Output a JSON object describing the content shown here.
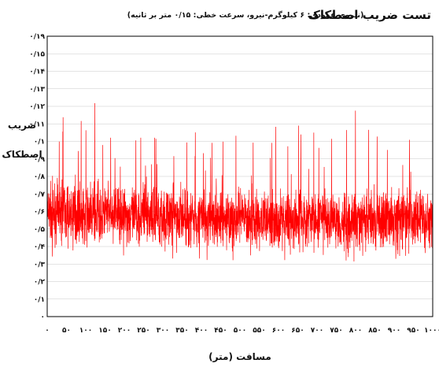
{
  "chart_data": {
    "type": "line",
    "title": "تست ضریب اصطکاک",
    "subtitle": "(نیروی عمودی: ۶ کیلوگرم-نیرو، سرعت خطی: ۰/۱۵ متر بر ثانیه)",
    "xlabel": "مسافت (متر)",
    "ylabel_line1": "ضریب",
    "ylabel_line2": "اصطکاک",
    "x_ticks": [
      "۰",
      "۵۰",
      "۱۰۰",
      "۱۵۰",
      "۲۰۰",
      "۲۵۰",
      "۳۰۰",
      "۳۵۰",
      "۴۰۰",
      "۴۵۰",
      "۵۰۰",
      "۵۵۰",
      "۶۰۰",
      "۶۵۰",
      "۷۰۰",
      "۷۵۰",
      "۸۰۰",
      "۸۵۰",
      "۹۰۰",
      "۹۵۰",
      "۱۰۰۰"
    ],
    "y_ticks": [
      "۰",
      "۰/۱",
      "۰/۲",
      "۰/۳",
      "۰/۴",
      "۰/۵",
      "۰/۶",
      "۰/۷",
      "۰/۸",
      "۰/۹",
      "۰/۱",
      "۰/۱۱",
      "۰/۱۲",
      "۰/۱۳",
      "۰/۱۴",
      "۰/۱۵",
      "۰/۱۹"
    ],
    "xlim": [
      0,
      1000
    ],
    "y_tick_count": 16,
    "series": [
      {
        "color": "#ff0000",
        "x": [
          0,
          20,
          40,
          60,
          80,
          100,
          120,
          140,
          160,
          180,
          200,
          220,
          240,
          260,
          280,
          300,
          320,
          340,
          360,
          380,
          400,
          420,
          440,
          460,
          480,
          500,
          520,
          540,
          560,
          580,
          600,
          620,
          640,
          660,
          680,
          700,
          720,
          740,
          760,
          780,
          800,
          820,
          840,
          860,
          880,
          900,
          920,
          940,
          960,
          980,
          1000
        ],
        "y_mean": [
          5.8,
          6.0,
          5.9,
          5.8,
          5.9,
          5.8,
          5.9,
          5.8,
          5.8,
          5.9,
          5.8,
          5.7,
          5.8,
          5.8,
          5.7,
          5.8,
          5.7,
          5.6,
          5.6,
          5.7,
          5.6,
          5.6,
          5.5,
          5.6,
          5.5,
          5.5,
          5.6,
          5.5,
          5.6,
          5.5,
          5.5,
          5.5,
          5.5,
          5.6,
          5.5,
          5.5,
          5.5,
          5.6,
          5.5,
          5.5,
          5.5,
          5.6,
          5.6,
          5.5,
          5.6,
          5.5,
          5.6,
          5.5,
          5.5,
          5.5,
          5.5
        ],
        "y_min": [
          3.3,
          3.0,
          3.2,
          3.0,
          2.8,
          3.1,
          3.0,
          3.2,
          3.0,
          3.1,
          3.0,
          3.2,
          3.0,
          3.1,
          3.0,
          3.1,
          3.2,
          3.0,
          3.1,
          3.2,
          3.1,
          3.0,
          3.2,
          3.1,
          3.0,
          2.7,
          3.1,
          3.0,
          3.2,
          3.1,
          3.0,
          3.1,
          3.2,
          3.0,
          3.1,
          3.2,
          3.0,
          3.1,
          3.2,
          3.1,
          3.0,
          3.1,
          3.2,
          3.1,
          3.0,
          3.1,
          3.2,
          3.1,
          3.0,
          3.1,
          3.2
        ],
        "y_max": [
          10.5,
          10.2,
          11.5,
          10.0,
          12.3,
          10.8,
          12.8,
          10.5,
          11.6,
          10.8,
          10.2,
          11.0,
          10.5,
          10.8,
          11.0,
          10.6,
          10.2,
          11.2,
          10.8,
          10.5,
          10.6,
          10.2,
          10.4,
          11.8,
          10.6,
          10.2,
          10.8,
          10.5,
          11.3,
          10.5,
          11.2,
          10.8,
          10.4,
          11.6,
          10.5,
          10.8,
          10.3,
          10.6,
          11.2,
          10.8,
          12.3,
          10.5,
          10.8,
          11.0,
          10.5,
          10.6,
          10.8,
          11.5,
          10.4,
          10.8,
          10.6
        ]
      }
    ]
  }
}
